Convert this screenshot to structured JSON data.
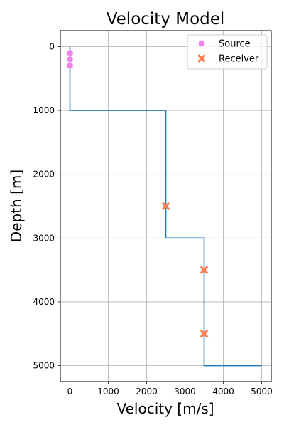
{
  "chart_data": {
    "type": "line",
    "title": "Velocity Model",
    "xlabel": "Velocity [m/s]",
    "ylabel": "Depth [m]",
    "xlim": [
      -250,
      5250
    ],
    "ylim": [
      5250,
      -250
    ],
    "y_inverted": true,
    "grid": true,
    "legend_position": "top-right",
    "x_ticks": [
      0,
      1000,
      2000,
      3000,
      4000,
      5000
    ],
    "y_ticks": [
      0,
      1000,
      2000,
      3000,
      4000,
      5000
    ],
    "series": [
      {
        "kind": "line",
        "color": "#1f77b4",
        "points": [
          [
            0,
            0
          ],
          [
            0,
            1000
          ],
          [
            2500,
            1000
          ],
          [
            2500,
            3000
          ],
          [
            3500,
            3000
          ],
          [
            3500,
            5000
          ],
          [
            5000,
            5000
          ]
        ]
      },
      {
        "kind": "scatter",
        "name": "Source",
        "marker": "hexagon",
        "color": "#ee82ee",
        "points": [
          [
            0,
            100
          ],
          [
            0,
            200
          ],
          [
            0,
            300
          ]
        ]
      },
      {
        "kind": "scatter",
        "name": "Receiver",
        "marker": "x-filled",
        "color": "#ff7f50",
        "points": [
          [
            2500,
            2500
          ],
          [
            3500,
            3500
          ],
          [
            3500,
            4500
          ]
        ]
      }
    ]
  }
}
